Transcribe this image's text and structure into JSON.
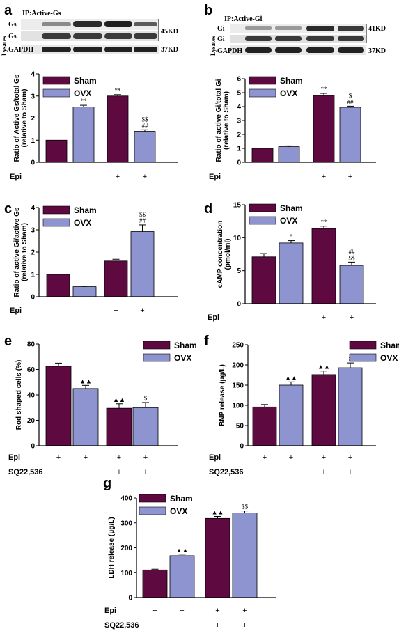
{
  "colors": {
    "sham": "#5e0a40",
    "ovx": "#8e94d0",
    "axis": "#000000",
    "band": "#2a2a2a",
    "blot_bg": "#e6e6e6"
  },
  "blots": {
    "a": {
      "ip": "IP:Active-Gs",
      "rows": [
        "Gs",
        "Gs",
        "GAPDH"
      ],
      "kd": [
        "45KD",
        "37KD"
      ],
      "lysates": "Lysates"
    },
    "b": {
      "ip": "IP:Active-Gi",
      "rows": [
        "Gi",
        "Gi",
        "GAPDH"
      ],
      "kd": [
        "41KD",
        "37KD"
      ],
      "lysates": "Lysates"
    }
  },
  "chart_data": [
    {
      "panel": "a",
      "type": "bar",
      "ylabel": "Ratio of Active Gs/total Gs\n(relative to Sham)",
      "yticks": [
        "0",
        "1",
        "2",
        "3",
        "4"
      ],
      "ylim": [
        0,
        4
      ],
      "legend": [
        "Sham",
        "OVX"
      ],
      "categories": [
        "Sham",
        "OVX",
        "Sham",
        "OVX"
      ],
      "values": [
        1.0,
        2.5,
        3.0,
        1.4
      ],
      "errors": [
        0,
        0.08,
        0.06,
        0.07
      ],
      "annotations": [
        [],
        [
          "**"
        ],
        [
          "**"
        ],
        [
          "$$",
          "##"
        ]
      ],
      "rows": [
        {
          "label": "Epi",
          "marks": [
            "",
            "",
            "+",
            "+"
          ]
        }
      ]
    },
    {
      "panel": "b",
      "type": "bar",
      "ylabel": "Ratio of active Gi/total Gi\n(relative to Sham)",
      "yticks": [
        "0",
        "1",
        "2",
        "3",
        "4",
        "5",
        "6"
      ],
      "ylim": [
        0,
        6
      ],
      "legend": [
        "Sham",
        "OVX"
      ],
      "categories": [
        "Sham",
        "OVX",
        "Sham",
        "OVX"
      ],
      "values": [
        1.0,
        1.12,
        4.8,
        3.95
      ],
      "errors": [
        0,
        0.06,
        0.15,
        0.08
      ],
      "annotations": [
        [],
        [],
        [
          "**"
        ],
        [
          "$",
          "##"
        ]
      ],
      "rows": [
        {
          "label": "Epi",
          "marks": [
            "",
            "",
            "+",
            "+"
          ]
        }
      ]
    },
    {
      "panel": "c",
      "type": "bar",
      "ylabel": "Ratio of active Gi/active Gs\n(relative to Sham)",
      "yticks": [
        "0",
        "1",
        "2",
        "3",
        "4"
      ],
      "ylim": [
        0,
        4
      ],
      "legend": [
        "Sham",
        "OVX"
      ],
      "categories": [
        "Sham",
        "OVX",
        "Sham",
        "OVX"
      ],
      "values": [
        1.0,
        0.45,
        1.6,
        2.92
      ],
      "errors": [
        0,
        0.03,
        0.08,
        0.3
      ],
      "annotations": [
        [],
        [],
        [],
        [
          "$$",
          "##"
        ]
      ],
      "rows": [
        {
          "label": "Epi",
          "marks": [
            "",
            "",
            "+",
            "+"
          ]
        }
      ]
    },
    {
      "panel": "d",
      "type": "bar",
      "ylabel": "cAMP concentration\n(pmol/ml)",
      "yticks": [
        "0",
        "5",
        "10",
        "15"
      ],
      "ylim": [
        0,
        15
      ],
      "legend": [
        "Sham",
        "OVX"
      ],
      "categories": [
        "Sham",
        "OVX",
        "Sham",
        "OVX"
      ],
      "values": [
        7.1,
        9.2,
        11.4,
        5.8
      ],
      "errors": [
        0.5,
        0.35,
        0.35,
        0.5
      ],
      "annotations": [
        [],
        [
          "*"
        ],
        [
          "**"
        ],
        [
          "##",
          "$$"
        ]
      ],
      "rows": [
        {
          "label": "Epi",
          "marks": [
            "",
            "",
            "+",
            "+"
          ]
        }
      ]
    },
    {
      "panel": "e",
      "type": "bar",
      "ylabel": "Rod shaped cells (%)",
      "yticks": [
        "0",
        "20",
        "40",
        "60",
        "80"
      ],
      "ylim": [
        0,
        80
      ],
      "legend": [
        "Sham",
        "OVX"
      ],
      "categories": [
        "Sham",
        "OVX",
        "Sham",
        "OVX"
      ],
      "values": [
        62.5,
        45.0,
        29.5,
        30.0
      ],
      "errors": [
        2.5,
        2.5,
        3.5,
        4.0
      ],
      "annotations": [
        [],
        [
          "▲▲"
        ],
        [
          "▲▲"
        ],
        [
          "$"
        ]
      ],
      "rows": [
        {
          "label": "Epi",
          "marks": [
            "+",
            "+",
            "+",
            "+"
          ]
        },
        {
          "label": "SQ22,536",
          "marks": [
            "",
            "",
            "+",
            "+"
          ]
        }
      ]
    },
    {
      "panel": "f",
      "type": "bar",
      "ylabel": "BNP release (μg/L)",
      "yticks": [
        "0",
        "50",
        "100",
        "150",
        "200",
        "250"
      ],
      "ylim": [
        0,
        250
      ],
      "legend": [
        "Sham",
        "OVX"
      ],
      "categories": [
        "Sham",
        "OVX",
        "Sham",
        "OVX"
      ],
      "values": [
        96,
        150,
        176,
        193
      ],
      "errors": [
        6,
        8,
        9,
        12
      ],
      "annotations": [
        [],
        [
          "▲▲"
        ],
        [
          "▲▲"
        ],
        [
          "$"
        ]
      ],
      "rows": [
        {
          "label": "Epi",
          "marks": [
            "+",
            "+",
            "+",
            "+"
          ]
        },
        {
          "label": "SQ22,536",
          "marks": [
            "",
            "",
            "+",
            "+"
          ]
        }
      ]
    },
    {
      "panel": "g",
      "type": "bar",
      "ylabel": "LDH release (μg/L)",
      "yticks": [
        "0",
        "100",
        "200",
        "300",
        "400"
      ],
      "ylim": [
        0,
        400
      ],
      "legend": [
        "Sham",
        "OVX"
      ],
      "categories": [
        "Sham",
        "OVX",
        "Sham",
        "OVX"
      ],
      "values": [
        111,
        168,
        318,
        340
      ],
      "errors": [
        3,
        6,
        8,
        8
      ],
      "annotations": [
        [],
        [
          "▲▲"
        ],
        [
          "▲▲"
        ],
        [
          "$$"
        ]
      ],
      "rows": [
        {
          "label": "Epi",
          "marks": [
            "+",
            "+",
            "+",
            "+"
          ]
        },
        {
          "label": "SQ22,536",
          "marks": [
            "",
            "",
            "+",
            "+"
          ]
        }
      ]
    }
  ]
}
